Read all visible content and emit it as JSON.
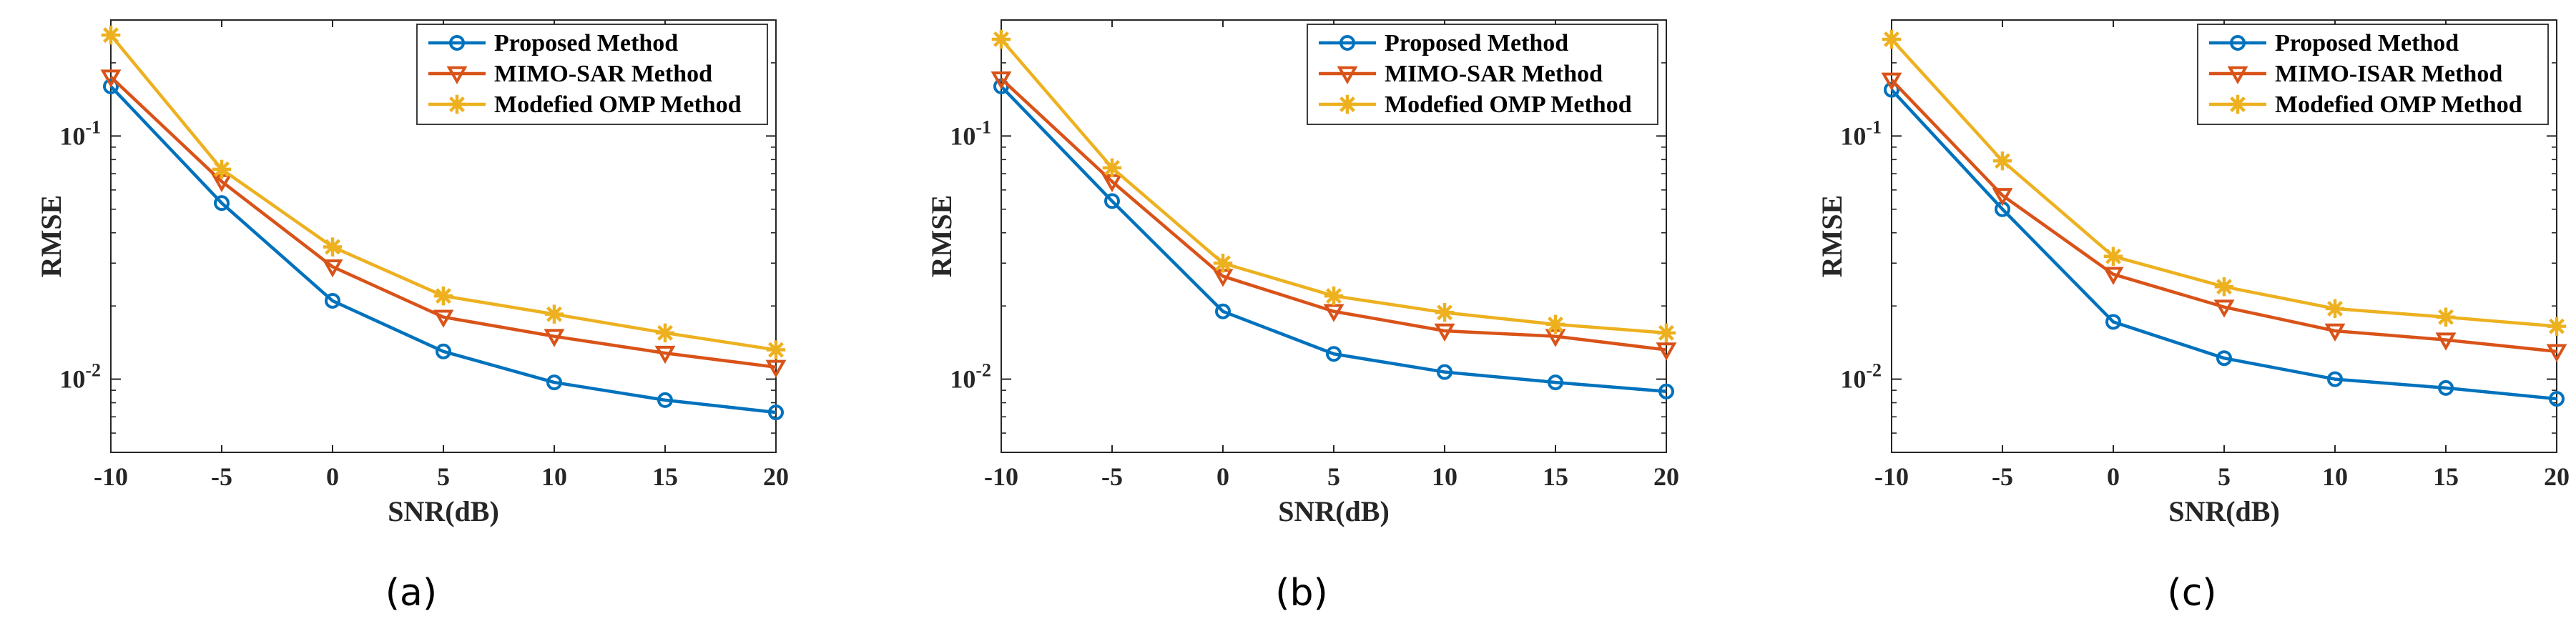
{
  "chart_data": [
    {
      "type": "line",
      "panel": "(a)",
      "caption": "(a)",
      "xlabel": "SNR(dB)",
      "ylabel": "RMSE",
      "yscale": "log",
      "ylim": [
        0.005,
        0.3
      ],
      "xlim": [
        -10,
        20
      ],
      "x": [
        -10,
        -5,
        0,
        5,
        10,
        15,
        20
      ],
      "xtick_labels": [
        "-10",
        "-5",
        "0",
        "5",
        "10",
        "15",
        "20"
      ],
      "ytick_labels": [
        {
          "base": "10",
          "exp": "-1",
          "value": 0.1
        },
        {
          "base": "10",
          "exp": "-2",
          "value": 0.01
        }
      ],
      "legend_position": "top-right",
      "series": [
        {
          "name": "Proposed Method",
          "color": "#0072BD",
          "marker": "circle",
          "values": [
            0.16,
            0.053,
            0.021,
            0.013,
            0.0097,
            0.0082,
            0.0073
          ]
        },
        {
          "name": "MIMO-SAR Method",
          "color": "#D95319",
          "marker": "triangle-down",
          "values": [
            0.175,
            0.065,
            0.029,
            0.018,
            0.015,
            0.0128,
            0.0112
          ]
        },
        {
          "name": "Modefied OMP Method",
          "color": "#EDB120",
          "marker": "star",
          "values": [
            0.26,
            0.073,
            0.035,
            0.022,
            0.0185,
            0.0155,
            0.0132
          ]
        }
      ]
    },
    {
      "type": "line",
      "panel": "(b)",
      "caption": "(b)",
      "xlabel": "SNR(dB)",
      "ylabel": "RMSE",
      "yscale": "log",
      "ylim": [
        0.005,
        0.3
      ],
      "xlim": [
        -10,
        20
      ],
      "x": [
        -10,
        -5,
        0,
        5,
        10,
        15,
        20
      ],
      "xtick_labels": [
        "-10",
        "-5",
        "0",
        "5",
        "10",
        "15",
        "20"
      ],
      "ytick_labels": [
        {
          "base": "10",
          "exp": "-1",
          "value": 0.1
        },
        {
          "base": "10",
          "exp": "-2",
          "value": 0.01
        }
      ],
      "legend_position": "top-right",
      "series": [
        {
          "name": "Proposed Method",
          "color": "#0072BD",
          "marker": "circle",
          "values": [
            0.16,
            0.054,
            0.019,
            0.0127,
            0.0107,
            0.0097,
            0.0089
          ]
        },
        {
          "name": "MIMO-SAR Method",
          "color": "#D95319",
          "marker": "triangle-down",
          "values": [
            0.172,
            0.065,
            0.0265,
            0.019,
            0.0158,
            0.015,
            0.0132
          ]
        },
        {
          "name": "Modefied OMP Method",
          "color": "#EDB120",
          "marker": "star",
          "values": [
            0.25,
            0.074,
            0.03,
            0.022,
            0.0188,
            0.0168,
            0.0155
          ]
        }
      ]
    },
    {
      "type": "line",
      "panel": "(c)",
      "caption": "(c)",
      "xlabel": "SNR(dB)",
      "ylabel": "RMSE",
      "yscale": "log",
      "ylim": [
        0.005,
        0.3
      ],
      "xlim": [
        -10,
        20
      ],
      "x": [
        -10,
        -5,
        0,
        5,
        10,
        15,
        20
      ],
      "xtick_labels": [
        "-10",
        "-5",
        "0",
        "5",
        "10",
        "15",
        "20"
      ],
      "ytick_labels": [
        {
          "base": "10",
          "exp": "-1",
          "value": 0.1
        },
        {
          "base": "10",
          "exp": "-2",
          "value": 0.01
        }
      ],
      "legend_position": "top-right",
      "series": [
        {
          "name": "Proposed Method",
          "color": "#0072BD",
          "marker": "circle",
          "values": [
            0.155,
            0.05,
            0.0172,
            0.0122,
            0.01,
            0.0092,
            0.0083
          ]
        },
        {
          "name": "MIMO-ISAR Method",
          "color": "#D95319",
          "marker": "triangle-down",
          "values": [
            0.17,
            0.057,
            0.027,
            0.0198,
            0.0158,
            0.0145,
            0.013
          ]
        },
        {
          "name": "Modefied OMP Method",
          "color": "#EDB120",
          "marker": "star",
          "values": [
            0.25,
            0.079,
            0.032,
            0.024,
            0.0195,
            0.018,
            0.0165
          ]
        }
      ]
    }
  ]
}
